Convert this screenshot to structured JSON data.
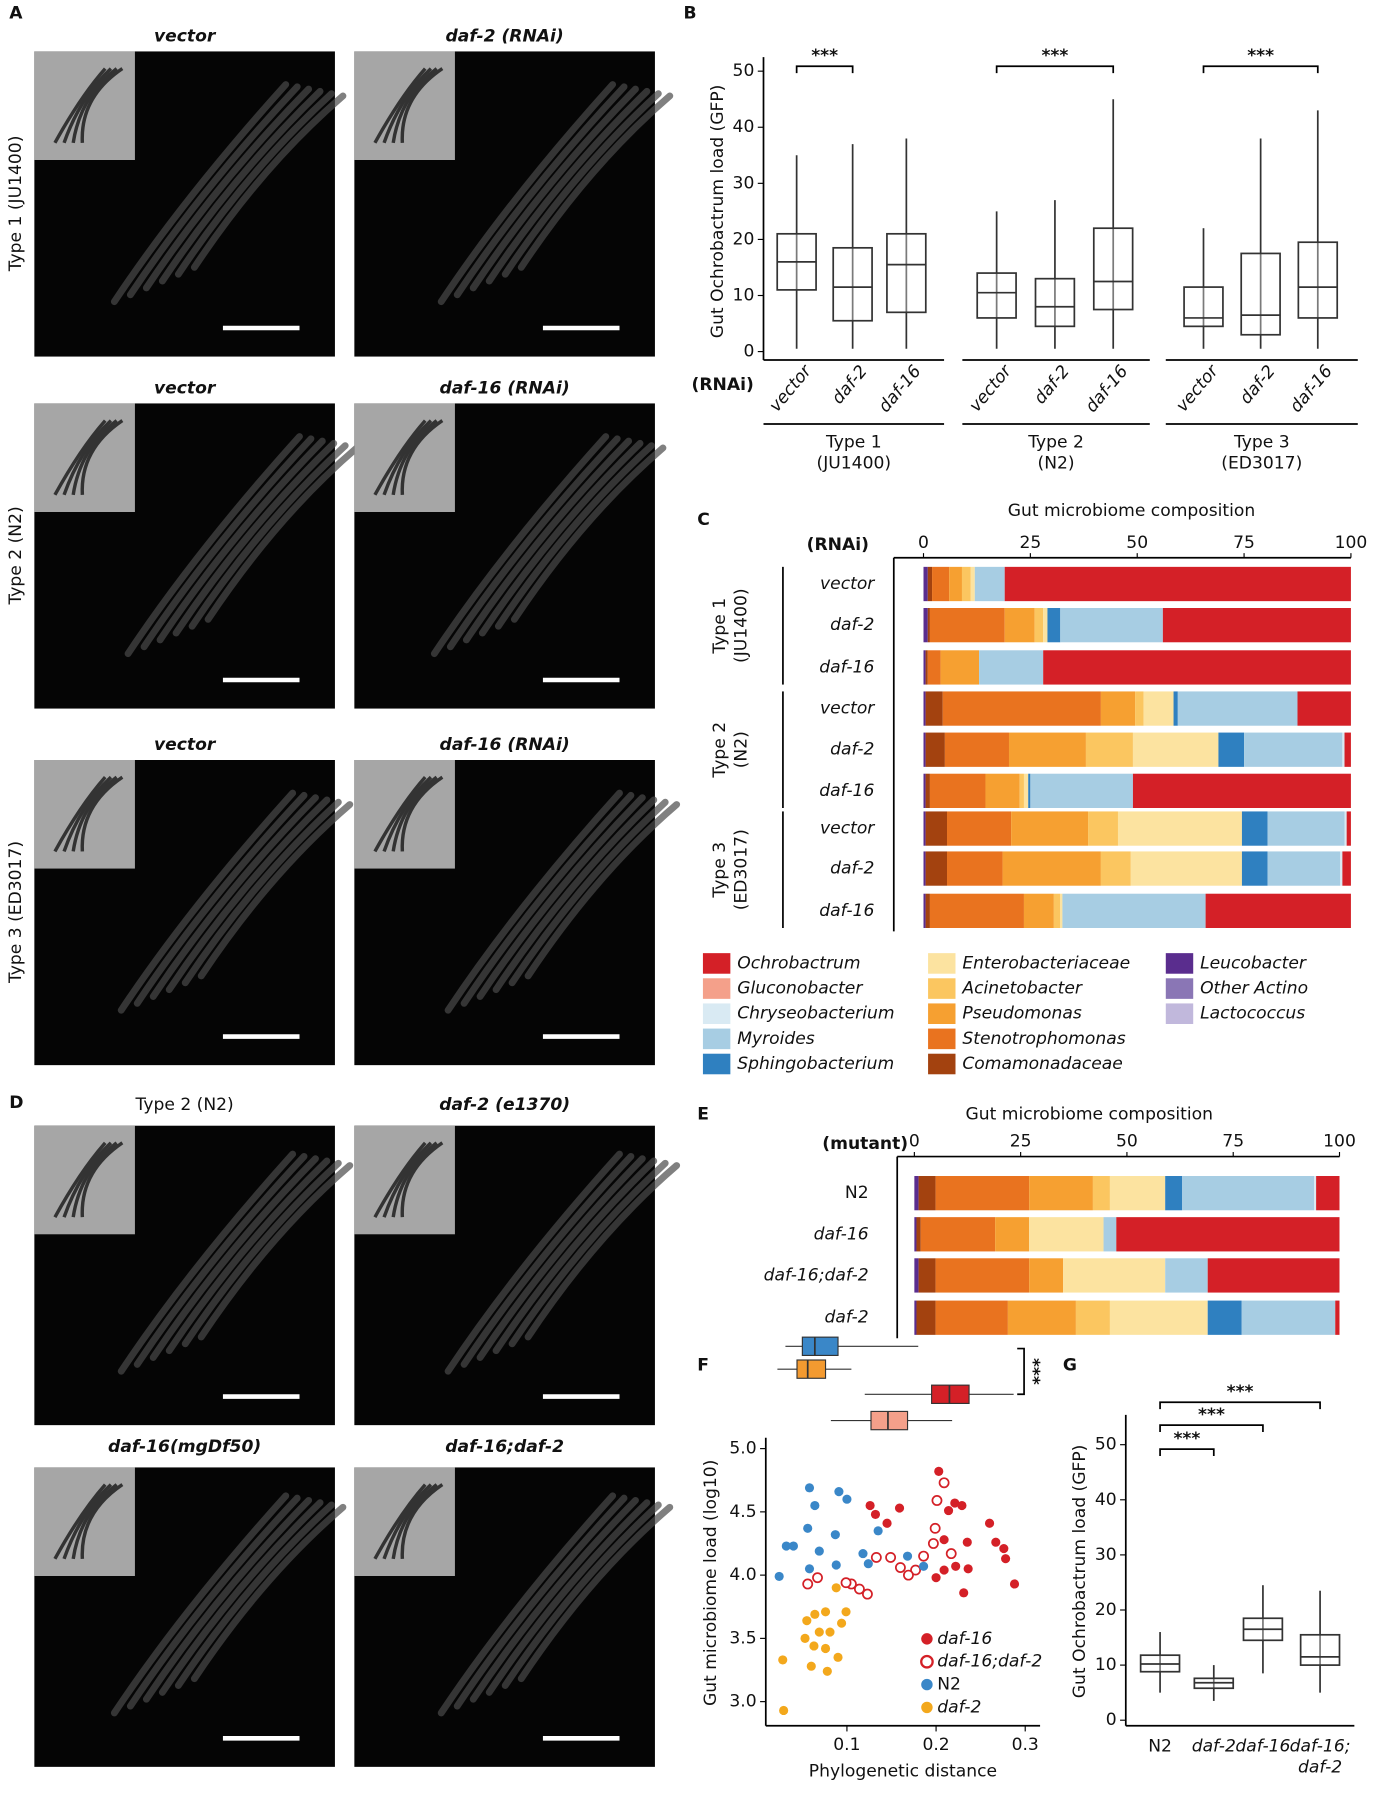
{
  "panel_labels": [
    "A",
    "B",
    "C",
    "D",
    "E",
    "F",
    "G"
  ],
  "micrographs": {
    "A": {
      "rows": [
        "Type 1 (JU1400)",
        "Type 2 (N2)",
        "Type 3 (ED3017)"
      ],
      "titles": [
        [
          "vector",
          "daf-2 (RNAi)"
        ],
        [
          "vector",
          "daf-16 (RNAi)"
        ],
        [
          "vector",
          "daf-16 (RNAi)"
        ]
      ]
    },
    "D": {
      "titles": [
        [
          "Type 2 (N2)",
          "daf-2 (e1370)"
        ],
        [
          "daf-16(mgDf50)",
          "daf-16;daf-2"
        ]
      ]
    }
  },
  "chart_data": [
    {
      "type": "box",
      "ylabel": "Gut Ochrobactrum load (GFP)",
      "axis_title": "(RNAi)",
      "categories": [
        "vector",
        "daf-2",
        "daf-16",
        "vector",
        "daf-2",
        "daf-16",
        "vector",
        "daf-2",
        "daf-16"
      ],
      "groups": [
        "Type 1\n(JU1400)",
        "Type 2\n(N2)",
        "Type 3\n(ED3017)"
      ],
      "color": "#333333",
      "boxes": [
        {
          "low": 0.5,
          "q1": 11,
          "median": 16,
          "q3": 21,
          "high": 35
        },
        {
          "low": 0.5,
          "q1": 5.5,
          "median": 11.5,
          "q3": 18.5,
          "high": 37
        },
        {
          "low": 0.5,
          "q1": 7,
          "median": 15.5,
          "q3": 21,
          "high": 38
        },
        {
          "low": 0.5,
          "q1": 6,
          "median": 10.5,
          "q3": 14,
          "high": 25
        },
        {
          "low": 0.5,
          "q1": 4.5,
          "median": 8,
          "q3": 13,
          "high": 27
        },
        {
          "low": 0.5,
          "q1": 7.5,
          "median": 12.5,
          "q3": 22,
          "high": 45
        },
        {
          "low": 0.5,
          "q1": 4.5,
          "median": 6,
          "q3": 11.5,
          "high": 22
        },
        {
          "low": 0.5,
          "q1": 3,
          "median": 6.5,
          "q3": 17.5,
          "high": 38
        },
        {
          "low": 0.5,
          "q1": 6,
          "median": 11.5,
          "q3": 19.5,
          "high": 43
        }
      ],
      "ylim": [
        -1.5,
        52.5
      ],
      "yticks": [
        0,
        10,
        20,
        30,
        40,
        50
      ],
      "significance": [
        "***",
        "***",
        "***"
      ]
    },
    {
      "type": "stacked_bar",
      "title": "Gut microbiome composition",
      "axis_title": "(RNAi)",
      "categories": [
        "vector",
        "daf-2",
        "daf-16",
        "vector",
        "daf-2",
        "daf-16",
        "vector",
        "daf-2",
        "daf-16"
      ],
      "groups": [
        "Type 1\n(JU1400)",
        "Type 2\n(N2)",
        "Type 3\n(ED3017)"
      ],
      "xlim": [
        0,
        100
      ],
      "xticks": [
        0,
        25,
        50,
        75,
        100
      ],
      "series": [
        {
          "name": "Ochrobactrum",
          "color": "#d42027",
          "values": [
            81,
            44,
            72,
            12.5,
            1.5,
            51,
            1,
            2,
            34
          ]
        },
        {
          "name": "Gluconobacter",
          "color": "#f4a08a",
          "values": [
            0,
            0,
            0,
            0,
            0,
            0,
            0,
            0,
            0
          ]
        },
        {
          "name": "Chryseobacterium",
          "color": "#d9eaf3",
          "values": [
            0,
            0,
            0,
            0,
            0.5,
            0,
            0.5,
            0.5,
            0
          ]
        },
        {
          "name": "Myroides",
          "color": "#a7cde3",
          "values": [
            7,
            24,
            15,
            28,
            23,
            24,
            18,
            17,
            33.5
          ]
        },
        {
          "name": "Sphingobacterium",
          "color": "#2f80c0",
          "values": [
            0,
            3,
            0,
            1,
            6,
            0.5,
            6,
            6,
            0
          ]
        },
        {
          "name": "Enterobacteriaceae",
          "color": "#fce3a0",
          "values": [
            1,
            1,
            0,
            7,
            20,
            1,
            29,
            26,
            0.5
          ]
        },
        {
          "name": "Acinetobacter",
          "color": "#fbc660",
          "values": [
            2,
            2,
            0,
            2,
            11,
            1,
            7,
            7,
            1.5
          ]
        },
        {
          "name": "Pseudomonas",
          "color": "#f6a031",
          "values": [
            3,
            7,
            9,
            8,
            18,
            8,
            18,
            23,
            7
          ]
        },
        {
          "name": "Stenotrophomonas",
          "color": "#e9731f",
          "values": [
            4,
            17.5,
            3,
            37,
            15,
            13,
            15,
            13,
            22
          ]
        },
        {
          "name": "Comamonadaceae",
          "color": "#a3420f",
          "values": [
            1,
            0.5,
            0.5,
            4,
            4.5,
            1,
            5,
            5,
            1
          ]
        },
        {
          "name": "Leucobacter",
          "color": "#5a2d8e",
          "values": [
            1,
            1,
            0.5,
            0.5,
            0.5,
            0.5,
            0.5,
            0.5,
            0.5
          ]
        },
        {
          "name": "Other Actino",
          "color": "#8a76b5",
          "values": [
            0,
            0,
            0,
            0,
            0,
            0,
            0,
            0,
            0
          ]
        },
        {
          "name": "Lactococcus",
          "color": "#c1b8dc",
          "values": [
            0,
            0,
            0,
            0,
            0,
            0,
            0,
            0,
            0
          ]
        }
      ]
    },
    {
      "type": "stacked_bar",
      "title": "Gut microbiome composition",
      "axis_title": "(mutant)",
      "categories": [
        "N2",
        "daf-16",
        "daf-16;daf-2",
        "daf-2"
      ],
      "xlim": [
        0,
        100
      ],
      "xticks": [
        0,
        25,
        50,
        75,
        100
      ],
      "series": [
        {
          "color": "#d42027",
          "values": [
            5.5,
            52.5,
            31,
            1
          ]
        },
        {
          "color": "#f4a08a",
          "values": [
            0,
            0,
            0,
            0
          ]
        },
        {
          "color": "#d9eaf3",
          "values": [
            0.5,
            0,
            0,
            0
          ]
        },
        {
          "color": "#a7cde3",
          "values": [
            31,
            3,
            10,
            22
          ]
        },
        {
          "color": "#2f80c0",
          "values": [
            4,
            0,
            0,
            8
          ]
        },
        {
          "color": "#fce3a0",
          "values": [
            13,
            17.5,
            24,
            23
          ]
        },
        {
          "color": "#fbc660",
          "values": [
            4,
            0,
            0,
            8
          ]
        },
        {
          "color": "#f6a031",
          "values": [
            15,
            8,
            8,
            16
          ]
        },
        {
          "color": "#e9731f",
          "values": [
            22,
            17.5,
            22,
            17
          ]
        },
        {
          "color": "#a3420f",
          "values": [
            4,
            1,
            4,
            4.5
          ]
        },
        {
          "color": "#5a2d8e",
          "values": [
            1,
            0.5,
            1,
            0.5
          ]
        },
        {
          "color": "#8a76b5",
          "values": [
            0,
            0,
            0,
            0
          ]
        },
        {
          "color": "#c1b8dc",
          "values": [
            0,
            0,
            0,
            0
          ]
        }
      ]
    },
    {
      "type": "scatter",
      "xlabel": "Phylogenetic distance",
      "ylabel": "Gut microbiome load (log10)",
      "xlim": [
        0.01,
        0.31
      ],
      "xticks": [
        0.1,
        0.2,
        0.3
      ],
      "ylim": [
        2.9,
        5.05
      ],
      "yticks": [
        {
          "value": 3,
          "label": "3.0"
        },
        3.5,
        {
          "value": 4,
          "label": "4.0"
        },
        4.5,
        {
          "value": 5,
          "label": "5.0"
        }
      ],
      "series": [
        {
          "name": "daf-16",
          "color": "#d42027",
          "marker": "filled",
          "x": [
            0.203,
            0.126,
            0.132,
            0.159,
            0.145,
            0.221,
            0.214,
            0.229,
            0.209,
            0.235,
            0.26,
            0.267,
            0.276,
            0.278,
            0.222,
            0.236,
            0.288,
            0.231,
            0.2,
            0.209
          ],
          "y": [
            4.82,
            4.55,
            4.48,
            4.53,
            4.41,
            4.57,
            4.51,
            4.55,
            4.28,
            4.26,
            4.41,
            4.26,
            4.21,
            4.13,
            4.07,
            4.05,
            3.93,
            3.86,
            3.98,
            4.04
          ]
        },
        {
          "name": "daf-16;daf-2",
          "color": "#d42027",
          "marker": "open",
          "x": [
            0.209,
            0.201,
            0.199,
            0.197,
            0.177,
            0.186,
            0.217,
            0.133,
            0.149,
            0.16,
            0.169,
            0.056,
            0.067,
            0.105,
            0.114,
            0.123,
            0.099
          ],
          "y": [
            4.73,
            4.59,
            4.37,
            4.25,
            4.04,
            4.15,
            4.17,
            4.14,
            4.14,
            4.06,
            4.0,
            3.93,
            3.98,
            3.93,
            3.89,
            3.85,
            3.94
          ]
        },
        {
          "name": "N2",
          "color": "#3a87c8",
          "marker": "filled",
          "x": [
            0.058,
            0.064,
            0.056,
            0.032,
            0.04,
            0.091,
            0.1,
            0.069,
            0.087,
            0.135,
            0.024,
            0.058,
            0.088,
            0.118,
            0.168,
            0.186,
            0.124
          ],
          "y": [
            4.69,
            4.55,
            4.37,
            4.23,
            4.23,
            4.66,
            4.6,
            4.19,
            4.32,
            4.35,
            3.99,
            4.05,
            4.08,
            4.17,
            4.15,
            4.07,
            4.09
          ]
        },
        {
          "name": "daf-2",
          "color": "#f3a81c",
          "marker": "filled",
          "x": [
            0.029,
            0.028,
            0.055,
            0.064,
            0.076,
            0.094,
            0.099,
            0.053,
            0.063,
            0.076,
            0.09,
            0.078,
            0.06,
            0.088,
            0.069,
            0.081
          ],
          "y": [
            2.93,
            3.33,
            3.64,
            3.69,
            3.71,
            3.62,
            3.71,
            3.5,
            3.44,
            3.42,
            3.35,
            3.24,
            3.28,
            3.9,
            3.55,
            3.55
          ]
        }
      ],
      "distance_boxes": [
        {
          "color": "#3a87c8",
          "low": 0.031,
          "q1": 0.05,
          "median": 0.064,
          "q3": 0.09,
          "high": 0.18
        },
        {
          "color": "#f39a30",
          "low": 0.022,
          "q1": 0.044,
          "median": 0.056,
          "q3": 0.076,
          "high": 0.105
        },
        {
          "color": "#d42027",
          "low": 0.12,
          "q1": 0.195,
          "median": 0.215,
          "q3": 0.237,
          "high": 0.287
        },
        {
          "color": "#f4a08a",
          "low": 0.082,
          "q1": 0.127,
          "median": 0.146,
          "q3": 0.168,
          "high": 0.218
        }
      ],
      "significance": "***"
    },
    {
      "type": "box",
      "ylabel": "Gut Ochrobactrum load (GFP)",
      "categories": [
        "N2",
        "daf-2",
        "daf-16",
        "daf-16;\ndaf-2"
      ],
      "color": "#333333",
      "boxes": [
        {
          "low": 5,
          "q1": 8.8,
          "median": 10.2,
          "q3": 11.8,
          "high": 16
        },
        {
          "low": 3.5,
          "q1": 5.8,
          "median": 6.8,
          "q3": 7.6,
          "high": 10
        },
        {
          "low": 8.5,
          "q1": 14.5,
          "median": 16.5,
          "q3": 18.5,
          "high": 24.5
        },
        {
          "low": 5,
          "q1": 10,
          "median": 11.5,
          "q3": 15.5,
          "high": 23.5
        }
      ],
      "ylim": [
        -1,
        55
      ],
      "yticks": [
        0,
        10,
        20,
        30,
        40,
        50
      ],
      "significance": [
        "***",
        "***",
        "***"
      ]
    }
  ]
}
